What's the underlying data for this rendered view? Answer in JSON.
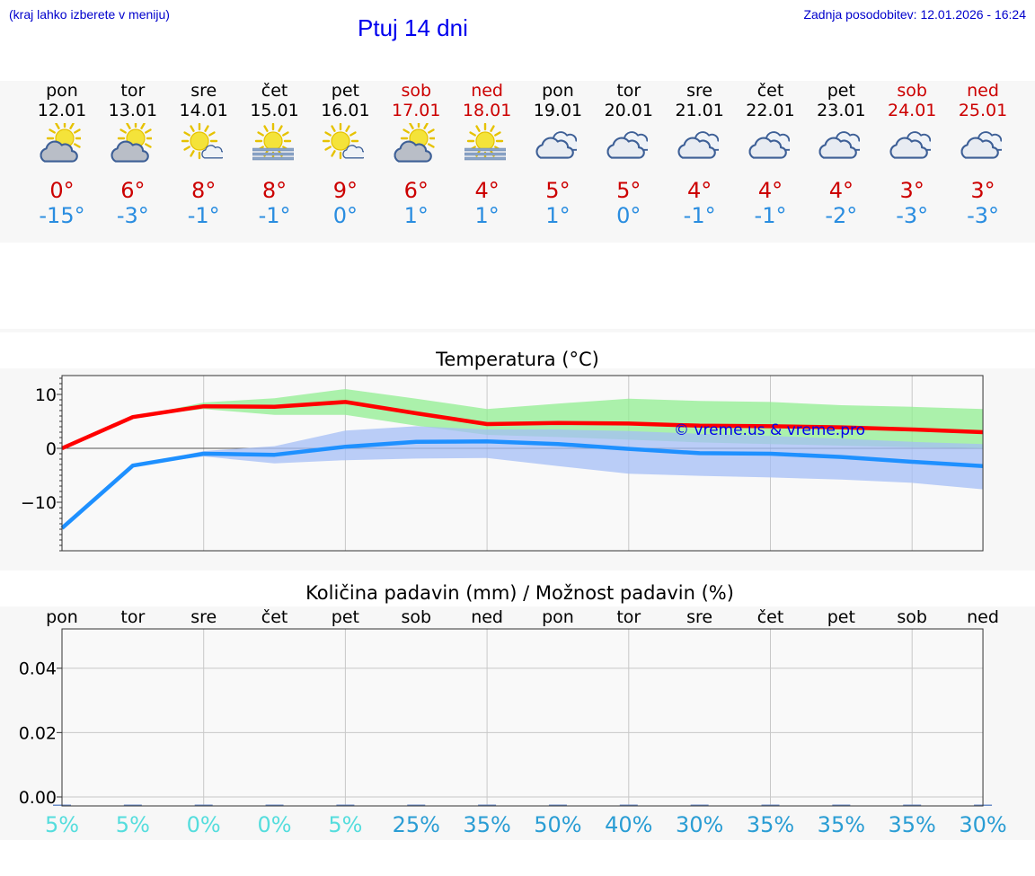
{
  "header": {
    "hint": "(kraj lahko izberete v meniju)",
    "title": "Ptuj 14 dni",
    "updated": "Zadnja posodobitev: 12.01.2026 - 16:24"
  },
  "days": [
    {
      "name": "pon",
      "date": "12.01",
      "weekend": false,
      "icon": "sun-cloud-icon",
      "tmax": "0°",
      "tmin": "-15°"
    },
    {
      "name": "tor",
      "date": "13.01",
      "weekend": false,
      "icon": "sun-cloud-icon",
      "tmax": "6°",
      "tmin": "-3°"
    },
    {
      "name": "sre",
      "date": "14.01",
      "weekend": false,
      "icon": "sun-small-cloud-icon",
      "tmax": "8°",
      "tmin": "-1°"
    },
    {
      "name": "čet",
      "date": "15.01",
      "weekend": false,
      "icon": "sun-fog-icon",
      "tmax": "8°",
      "tmin": "-1°"
    },
    {
      "name": "pet",
      "date": "16.01",
      "weekend": false,
      "icon": "sun-small-cloud-icon",
      "tmax": "9°",
      "tmin": "0°"
    },
    {
      "name": "sob",
      "date": "17.01",
      "weekend": true,
      "icon": "sun-cloud-icon",
      "tmax": "6°",
      "tmin": "1°"
    },
    {
      "name": "ned",
      "date": "18.01",
      "weekend": true,
      "icon": "sun-fog-icon",
      "tmax": "4°",
      "tmin": "1°"
    },
    {
      "name": "pon",
      "date": "19.01",
      "weekend": false,
      "icon": "cloudy-icon",
      "tmax": "5°",
      "tmin": "1°"
    },
    {
      "name": "tor",
      "date": "20.01",
      "weekend": false,
      "icon": "cloudy-icon",
      "tmax": "5°",
      "tmin": "0°"
    },
    {
      "name": "sre",
      "date": "21.01",
      "weekend": false,
      "icon": "cloudy-icon",
      "tmax": "4°",
      "tmin": "-1°"
    },
    {
      "name": "čet",
      "date": "22.01",
      "weekend": false,
      "icon": "cloudy-icon",
      "tmax": "4°",
      "tmin": "-1°"
    },
    {
      "name": "pet",
      "date": "23.01",
      "weekend": false,
      "icon": "cloudy-icon",
      "tmax": "4°",
      "tmin": "-2°"
    },
    {
      "name": "sob",
      "date": "24.01",
      "weekend": true,
      "icon": "cloudy-icon",
      "tmax": "3°",
      "tmin": "-3°"
    },
    {
      "name": "ned",
      "date": "25.01",
      "weekend": true,
      "icon": "cloudy-icon",
      "tmax": "3°",
      "tmin": "-3°"
    }
  ],
  "colors": {
    "max": "#ff0000",
    "min": "#1e90ff",
    "maxBand": "#90ee90",
    "minBand": "#a4bdf5",
    "probLight": "#55dddd",
    "probDark": "#2a9dd4"
  },
  "chart_data": [
    {
      "type": "line",
      "title": "Temperatura (°C)",
      "watermark": "© vreme.us & vreme.pro",
      "x": [
        0,
        1,
        2,
        3,
        4,
        5,
        6,
        7,
        8,
        9,
        10,
        11,
        12,
        13
      ],
      "ylim": [
        -19,
        13.5
      ],
      "yticks": [
        10,
        0,
        -10
      ],
      "ytick_labels": [
        "10",
        "0",
        "−10"
      ],
      "series": [
        {
          "name": "max",
          "values": [
            0,
            5.8,
            7.8,
            7.7,
            8.6,
            6.5,
            4.5,
            4.7,
            4.6,
            4.2,
            4.1,
            3.9,
            3.5,
            3.0
          ],
          "band_high": [
            0,
            5.8,
            8.5,
            9.3,
            11,
            9.2,
            7.3,
            8.3,
            9.2,
            8.8,
            8.6,
            8,
            7.7,
            7.3
          ],
          "band_low": [
            0,
            5.8,
            7.3,
            6.2,
            6.2,
            4.2,
            2.5,
            2.1,
            1.6,
            1.1,
            0.8,
            0.5,
            0.2,
            0
          ]
        },
        {
          "name": "min",
          "values": [
            -14.8,
            -3.2,
            -1.0,
            -1.2,
            0.3,
            1.2,
            1.3,
            0.8,
            -0.1,
            -0.9,
            -1.0,
            -1.6,
            -2.5,
            -3.3
          ],
          "band_high": [
            -14.8,
            -3.2,
            -0.5,
            0.4,
            3.3,
            4.1,
            3.5,
            3.5,
            3.2,
            2.7,
            2.3,
            1.8,
            1.2,
            0.8
          ],
          "band_low": [
            -14.8,
            -3.2,
            -1.5,
            -2.8,
            -2.2,
            -1.9,
            -1.8,
            -3.3,
            -4.7,
            -5.1,
            -5.4,
            -5.8,
            -6.4,
            -7.6
          ]
        }
      ]
    },
    {
      "type": "bar",
      "title": "Količina padavin (mm) / Možnost padavin (%)",
      "categories": [
        "pon",
        "tor",
        "sre",
        "čet",
        "pet",
        "sob",
        "ned",
        "pon",
        "tor",
        "sre",
        "čet",
        "pet",
        "sob",
        "ned"
      ],
      "values": [
        0,
        0,
        0,
        0,
        0,
        0,
        0,
        0,
        0,
        0,
        0,
        0,
        0,
        0
      ],
      "probability": [
        "5%",
        "5%",
        "0%",
        "0%",
        "5%",
        "25%",
        "35%",
        "50%",
        "40%",
        "30%",
        "35%",
        "35%",
        "35%",
        "30%"
      ],
      "probability_values": [
        5,
        5,
        0,
        0,
        5,
        25,
        35,
        50,
        40,
        30,
        35,
        35,
        35,
        30
      ],
      "ylim": [
        0,
        0.055
      ],
      "yticks": [
        0.0,
        0.02,
        0.04
      ],
      "ytick_labels": [
        "0.00",
        "0.02",
        "0.04"
      ]
    }
  ]
}
